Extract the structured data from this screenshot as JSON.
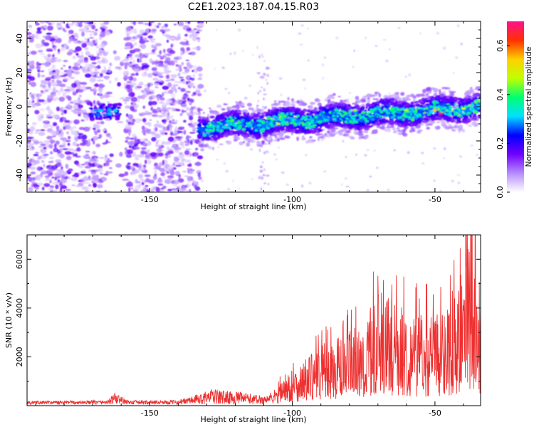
{
  "title": "C2E1.2023.187.04.15.R03",
  "chart_data": [
    {
      "type": "heatmap",
      "xlabel": "Height of straight line (km)",
      "ylabel": "Frequency (Hz)",
      "xlim": [
        -193,
        -34
      ],
      "ylim": [
        -50,
        50
      ],
      "xticks": [
        -150,
        -100,
        -50
      ],
      "yticks": [
        -40,
        -20,
        0,
        20,
        40
      ],
      "colorbar": {
        "label": "Normalized spectral amplitude",
        "range": [
          0,
          0.7
        ],
        "ticks": [
          0.0,
          0.2,
          0.4,
          0.6
        ],
        "colormap": [
          "#ffffff",
          "#b68cff",
          "#7000ff",
          "#0000ff",
          "#00e0ff",
          "#00ff70",
          "#c0ff00",
          "#ffd000",
          "#ff3000",
          "#ff1090"
        ]
      },
      "description_bands": [
        {
          "x_range": [
            -193,
            -132
          ],
          "freq_range": [
            -50,
            50
          ],
          "level": "broadband noise 0.05-0.15"
        },
        {
          "x_range": [
            -170,
            -160
          ],
          "center_freq": -3,
          "level": 0.3
        },
        {
          "x_range": [
            -132,
            -34
          ],
          "center_freq_start": -12,
          "center_freq_end": 0,
          "level": "0.2-0.6"
        }
      ]
    },
    {
      "type": "line",
      "xlabel": "Height of straight line (km)",
      "ylabel": "SNR (10 * v/v)",
      "xlim": [
        -193,
        -34
      ],
      "ylim": [
        0,
        7000
      ],
      "xticks": [
        -150,
        -100,
        -50
      ],
      "yticks": [
        2000,
        4000,
        6000
      ],
      "series": [
        {
          "name": "SNR",
          "color": "#ee3030",
          "envelope": [
            {
              "x": -193,
              "y": 200
            },
            {
              "x": -165,
              "y": 250
            },
            {
              "x": -162,
              "y": 700
            },
            {
              "x": -158,
              "y": 250
            },
            {
              "x": -140,
              "y": 250
            },
            {
              "x": -135,
              "y": 500
            },
            {
              "x": -128,
              "y": 900
            },
            {
              "x": -117,
              "y": 700
            },
            {
              "x": -110,
              "y": 500
            },
            {
              "x": -103,
              "y": 1200
            },
            {
              "x": -95,
              "y": 1900
            },
            {
              "x": -85,
              "y": 2600
            },
            {
              "x": -75,
              "y": 3200
            },
            {
              "x": -70,
              "y": 4500
            },
            {
              "x": -60,
              "y": 3800
            },
            {
              "x": -50,
              "y": 3600
            },
            {
              "x": -45,
              "y": 4200
            },
            {
              "x": -40,
              "y": 5500
            },
            {
              "x": -37,
              "y": 7000
            },
            {
              "x": -34,
              "y": 4500
            }
          ]
        }
      ]
    }
  ]
}
